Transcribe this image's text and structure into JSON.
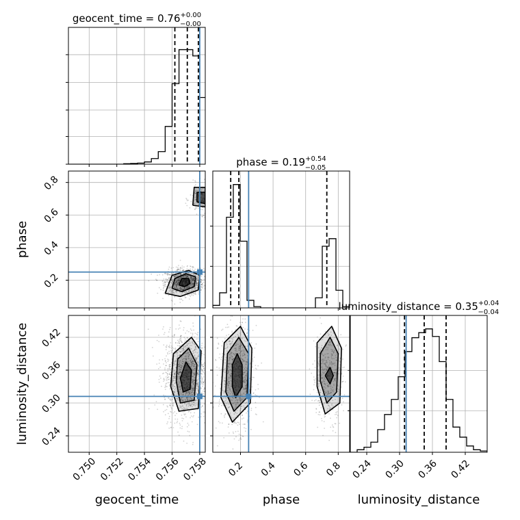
{
  "chart_data": {
    "type": "corner",
    "parameters": [
      {
        "name": "geocent_time",
        "xlabel": "geocent_time",
        "ylabel": "",
        "range": [
          0.7485,
          0.7584
        ],
        "ticks": [
          0.75,
          0.752,
          0.754,
          0.756,
          0.758
        ],
        "tick_labels": [
          "0.750",
          "0.752",
          "0.754",
          "0.756",
          "0.758"
        ],
        "truth": 0.758,
        "quantiles": [
          0.7562,
          0.7571,
          0.7579
        ],
        "title": {
          "main": "geocent_time = 0.76",
          "plus": "+0.00",
          "minus": "−0.00"
        },
        "hist_ymax": 1.0,
        "hist_edges": [
          0.7485,
          0.749,
          0.7495,
          0.75,
          0.7505,
          0.751,
          0.7515,
          0.752,
          0.7525,
          0.753,
          0.7535,
          0.754,
          0.7545,
          0.755,
          0.7555,
          0.756,
          0.7565,
          0.757,
          0.7575,
          0.758,
          0.7585
        ],
        "hist_values": [
          0,
          0,
          0,
          0,
          0,
          0,
          0,
          0,
          0.004,
          0.006,
          0.009,
          0.018,
          0.045,
          0.1,
          0.3,
          0.64,
          0.91,
          0.91,
          0.86,
          0.53
        ]
      },
      {
        "name": "phase",
        "xlabel": "phase",
        "ylabel": "phase",
        "range": [
          0.03,
          0.87
        ],
        "ticks": [
          0.2,
          0.4,
          0.6,
          0.8
        ],
        "tick_labels": [
          "0.2",
          "0.4",
          "0.6",
          "0.8"
        ],
        "truth": 0.25,
        "quantiles": [
          0.14,
          0.19,
          0.73
        ],
        "title": {
          "main": "phase = 0.19",
          "plus": "+0.54",
          "minus": "−0.05"
        },
        "hist_ymax": 1.0,
        "hist_edges": [
          0.03,
          0.072,
          0.114,
          0.156,
          0.198,
          0.24,
          0.282,
          0.324,
          0.366,
          0.408,
          0.45,
          0.492,
          0.534,
          0.576,
          0.618,
          0.66,
          0.702,
          0.744,
          0.786,
          0.828,
          0.87
        ],
        "hist_values": [
          0.02,
          0.12,
          0.72,
          0.98,
          0.53,
          0.06,
          0.01,
          0,
          0,
          0,
          0,
          0,
          0,
          0,
          0,
          0.08,
          0.49,
          0.55,
          0.14,
          0.01
        ]
      },
      {
        "name": "luminosity_distance",
        "xlabel": "luminosity_distance",
        "ylabel": "luminosity_distance",
        "range": [
          0.21,
          0.46
        ],
        "ticks": [
          0.24,
          0.3,
          0.36,
          0.42
        ],
        "tick_labels": [
          "0.24",
          "0.30",
          "0.36",
          "0.42"
        ],
        "truth": 0.312,
        "quantiles": [
          0.309,
          0.345,
          0.385
        ],
        "title": {
          "main": "luminosity_distance = 0.35",
          "plus": "+0.04",
          "minus": "−0.04"
        },
        "hist_ymax": 1.0,
        "hist_edges": [
          0.21,
          0.2225,
          0.235,
          0.2475,
          0.26,
          0.2725,
          0.285,
          0.2975,
          0.31,
          0.3225,
          0.335,
          0.3475,
          0.36,
          0.3725,
          0.385,
          0.3975,
          0.41,
          0.4225,
          0.435,
          0.4475,
          0.46
        ],
        "hist_values": [
          0,
          0.02,
          0.04,
          0.08,
          0.18,
          0.3,
          0.42,
          0.6,
          0.8,
          0.91,
          0.95,
          0.98,
          0.92,
          0.72,
          0.42,
          0.2,
          0.12,
          0.05,
          0.02,
          0.01
        ]
      }
    ],
    "pairs": [
      {
        "x": "geocent_time",
        "y": "phase",
        "modes": [
          {
            "cx": 0.7569,
            "cy": 0.19,
            "sx": 0.0006,
            "sy": 0.035,
            "w": 0.82
          },
          {
            "cx": 0.7582,
            "cy": 0.7,
            "sx": 0.0004,
            "sy": 0.04,
            "w": 0.18
          }
        ],
        "contours": [
          {
            "level": "0.5",
            "points": [
              [
                0.7565,
                0.17
              ],
              [
                0.7569,
                0.16
              ],
              [
                0.7573,
                0.18
              ],
              [
                0.7572,
                0.21
              ],
              [
                0.7567,
                0.21
              ],
              [
                0.7565,
                0.17
              ]
            ]
          },
          {
            "level": "1.0",
            "points": [
              [
                0.756,
                0.15
              ],
              [
                0.7567,
                0.13
              ],
              [
                0.7576,
                0.16
              ],
              [
                0.7577,
                0.22
              ],
              [
                0.757,
                0.24
              ],
              [
                0.7562,
                0.21
              ],
              [
                0.756,
                0.15
              ]
            ]
          },
          {
            "level": "1.5",
            "points": [
              [
                0.7555,
                0.12
              ],
              [
                0.7566,
                0.1
              ],
              [
                0.7579,
                0.14
              ],
              [
                0.758,
                0.23
              ],
              [
                0.7572,
                0.26
              ],
              [
                0.756,
                0.23
              ],
              [
                0.7555,
                0.12
              ]
            ]
          },
          {
            "level": "0.5b",
            "points": [
              [
                0.7578,
                0.68
              ],
              [
                0.7584,
                0.67
              ],
              [
                0.7584,
                0.74
              ],
              [
                0.7578,
                0.74
              ],
              [
                0.7578,
                0.68
              ]
            ]
          },
          {
            "level": "1.0b",
            "points": [
              [
                0.7575,
                0.66
              ],
              [
                0.7584,
                0.65
              ],
              [
                0.7584,
                0.77
              ],
              [
                0.7576,
                0.77
              ],
              [
                0.7575,
                0.66
              ]
            ]
          }
        ]
      },
      {
        "x": "geocent_time",
        "y": "luminosity_distance",
        "modes": [
          {
            "cx": 0.757,
            "cy": 0.35,
            "sx": 0.0007,
            "sy": 0.035,
            "w": 1.0
          }
        ],
        "contours": [
          {
            "level": "0.5",
            "points": [
              [
                0.7566,
                0.345
              ],
              [
                0.7568,
                0.32
              ],
              [
                0.7573,
                0.325
              ],
              [
                0.7574,
                0.36
              ],
              [
                0.757,
                0.375
              ],
              [
                0.7566,
                0.345
              ]
            ]
          },
          {
            "level": "1.0",
            "points": [
              [
                0.7563,
                0.34
              ],
              [
                0.7566,
                0.3
              ],
              [
                0.7576,
                0.305
              ],
              [
                0.7578,
                0.37
              ],
              [
                0.7572,
                0.4
              ],
              [
                0.7564,
                0.38
              ],
              [
                0.7563,
                0.34
              ]
            ]
          },
          {
            "level": "1.5",
            "points": [
              [
                0.7559,
                0.33
              ],
              [
                0.7565,
                0.285
              ],
              [
                0.7579,
                0.29
              ],
              [
                0.7581,
                0.395
              ],
              [
                0.7574,
                0.42
              ],
              [
                0.7561,
                0.39
              ],
              [
                0.7559,
                0.33
              ]
            ]
          }
        ]
      },
      {
        "x": "phase",
        "y": "luminosity_distance",
        "modes": [
          {
            "cx": 0.175,
            "cy": 0.345,
            "sx": 0.045,
            "sy": 0.04,
            "w": 0.65
          },
          {
            "cx": 0.735,
            "cy": 0.35,
            "sx": 0.04,
            "sy": 0.035,
            "w": 0.35
          }
        ],
        "contours": [
          {
            "level": "0.5",
            "points": [
              [
                0.15,
                0.33
              ],
              [
                0.17,
                0.31
              ],
              [
                0.21,
                0.33
              ],
              [
                0.21,
                0.37
              ],
              [
                0.18,
                0.39
              ],
              [
                0.15,
                0.37
              ],
              [
                0.15,
                0.33
              ]
            ]
          },
          {
            "level": "1.0",
            "points": [
              [
                0.11,
                0.32
              ],
              [
                0.16,
                0.285
              ],
              [
                0.24,
                0.31
              ],
              [
                0.25,
                0.39
              ],
              [
                0.19,
                0.42
              ],
              [
                0.12,
                0.39
              ],
              [
                0.11,
                0.32
              ]
            ]
          },
          {
            "level": "1.5",
            "points": [
              [
                0.08,
                0.31
              ],
              [
                0.15,
                0.265
              ],
              [
                0.26,
                0.3
              ],
              [
                0.27,
                0.4
              ],
              [
                0.2,
                0.44
              ],
              [
                0.1,
                0.41
              ],
              [
                0.08,
                0.31
              ]
            ]
          },
          {
            "level": "0.5b",
            "points": [
              [
                0.72,
                0.35
              ],
              [
                0.75,
                0.335
              ],
              [
                0.77,
                0.35
              ],
              [
                0.75,
                0.365
              ],
              [
                0.72,
                0.35
              ]
            ]
          },
          {
            "level": "1.0b",
            "points": [
              [
                0.69,
                0.34
              ],
              [
                0.73,
                0.3
              ],
              [
                0.79,
                0.32
              ],
              [
                0.8,
                0.39
              ],
              [
                0.75,
                0.42
              ],
              [
                0.69,
                0.39
              ],
              [
                0.69,
                0.34
              ]
            ]
          },
          {
            "level": "1.5b",
            "points": [
              [
                0.67,
                0.33
              ],
              [
                0.72,
                0.28
              ],
              [
                0.81,
                0.3
              ],
              [
                0.82,
                0.4
              ],
              [
                0.76,
                0.44
              ],
              [
                0.67,
                0.41
              ],
              [
                0.67,
                0.33
              ]
            ]
          }
        ]
      }
    ],
    "grid": true,
    "truth_color": "#4682b4",
    "hist_color": "#000000",
    "density_color": "#000000"
  }
}
